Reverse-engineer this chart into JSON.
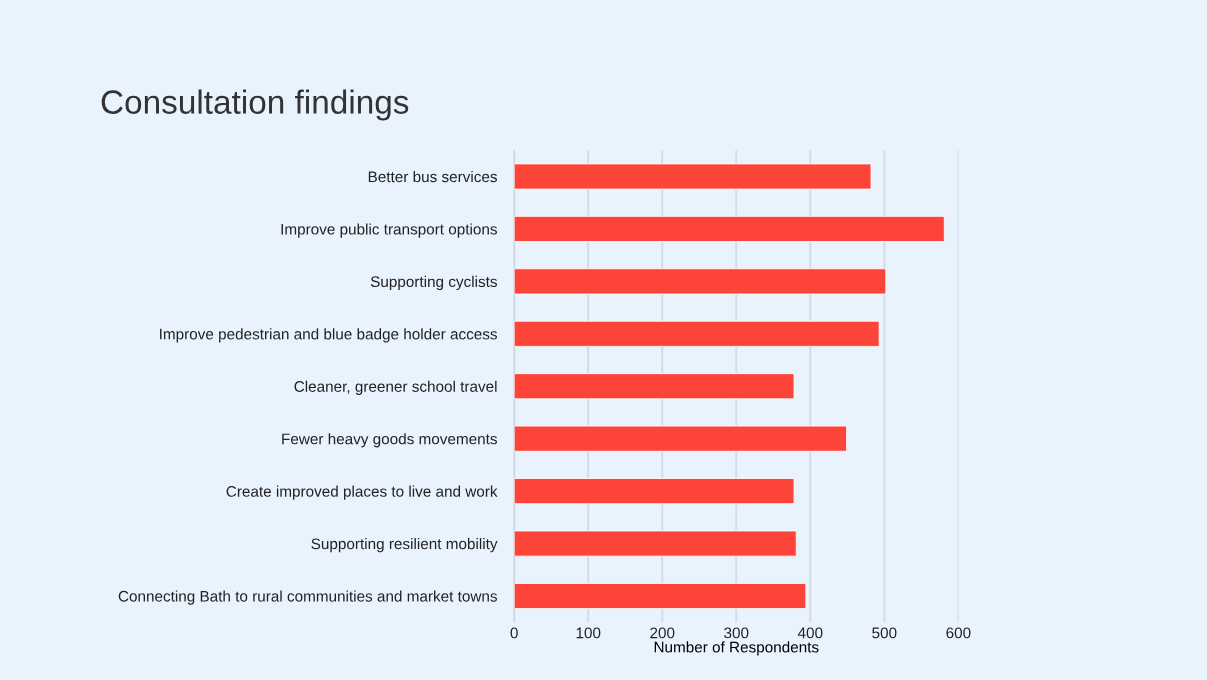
{
  "chart_data": {
    "type": "bar",
    "orientation": "horizontal",
    "title": "Consultation findings",
    "categories": [
      "Better bus services",
      "Improve public transport options",
      "Supporting cyclists",
      "Improve pedestrian and blue badge holder access",
      "Cleaner, greener school travel",
      "Fewer heavy goods movements",
      "Create improved places to live and work",
      "Supporting resilient mobility",
      "Connecting Bath to rural communities and market towns"
    ],
    "values": [
      482,
      581,
      502,
      493,
      378,
      449,
      378,
      381,
      394
    ],
    "color": "#fc4438",
    "xlabel": "Number of Respondents",
    "xlim": [
      0,
      600
    ],
    "xticks": [
      0,
      100,
      200,
      300,
      400,
      500,
      600
    ],
    "grid": "x"
  }
}
